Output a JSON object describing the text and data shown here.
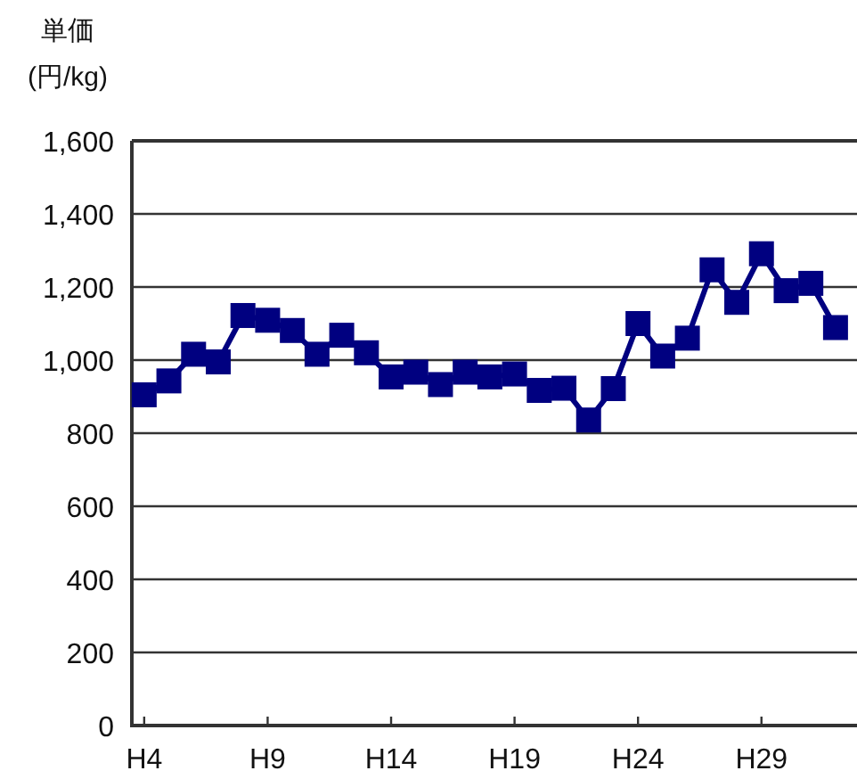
{
  "chart_data": {
    "type": "line",
    "ylabel": "単価\n(円/kg)",
    "categories": [
      "H4",
      null,
      null,
      null,
      null,
      "H9",
      null,
      null,
      null,
      null,
      "H14",
      null,
      null,
      null,
      null,
      "H19",
      null,
      null,
      null,
      null,
      "H24",
      null,
      null,
      null,
      null,
      "H29",
      null,
      null,
      null
    ],
    "series": [
      {
        "color": "#000080",
        "values": [
          905,
          943,
          1016,
          995,
          1122,
          1109,
          1081,
          1016,
          1068,
          1020,
          954,
          967,
          933,
          967,
          954,
          962,
          917,
          923,
          836,
          922,
          1100,
          1011,
          1060,
          1247,
          1158,
          1291,
          1190,
          1210,
          1089
        ]
      }
    ],
    "ylim": [
      0,
      1600
    ],
    "yticks": [
      {
        "value": 0,
        "label": "0"
      },
      {
        "value": 200,
        "label": "200"
      },
      {
        "value": 400,
        "label": "400"
      },
      {
        "value": 600,
        "label": "600"
      },
      {
        "value": 800,
        "label": "800"
      },
      {
        "value": 1000,
        "label": "1,000"
      },
      {
        "value": 1200,
        "label": "1,200"
      },
      {
        "value": 1400,
        "label": "1,400"
      },
      {
        "value": 1600,
        "label": "1,600"
      }
    ],
    "grid": "y",
    "marker": "square",
    "line_style": "solid"
  }
}
